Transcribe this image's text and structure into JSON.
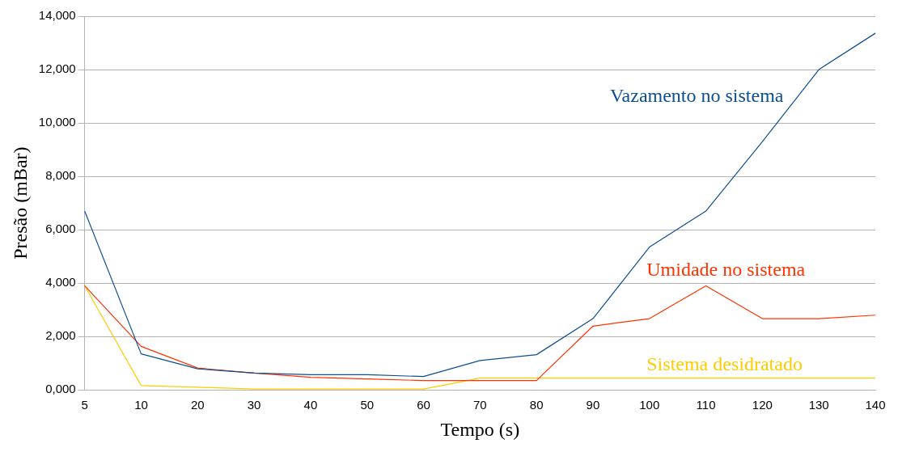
{
  "chart_data": {
    "type": "line",
    "xlabel": "Tempo (s)",
    "ylabel": "Presão (mBar)",
    "categories": [
      "5",
      "10",
      "20",
      "30",
      "40",
      "50",
      "60",
      "70",
      "80",
      "90",
      "100",
      "110",
      "120",
      "130",
      "140"
    ],
    "series": [
      {
        "name": "Vazamento no sistema",
        "color": "#0e4f8f",
        "values": [
          6700,
          1350,
          790,
          630,
          570,
          570,
          500,
          1100,
          1320,
          2670,
          5350,
          6700,
          9300,
          12000,
          13360
        ]
      },
      {
        "name": "Umidade no sistema",
        "color": "#ff3300",
        "values": [
          3900,
          1630,
          820,
          630,
          470,
          410,
          350,
          350,
          350,
          2390,
          2670,
          3900,
          2670,
          2670,
          2800
        ]
      },
      {
        "name": "Sistema desidratado",
        "color": "#ffcc00",
        "values": [
          3900,
          160,
          100,
          30,
          30,
          30,
          30,
          440,
          440,
          440,
          440,
          440,
          440,
          440,
          440
        ]
      }
    ],
    "ylim": [
      0,
      14000
    ],
    "yticks": [
      {
        "value": 0,
        "label": "0,000"
      },
      {
        "value": 2000,
        "label": "2,000"
      },
      {
        "value": 4000,
        "label": "4,000"
      },
      {
        "value": 6000,
        "label": "6,000"
      },
      {
        "value": 8000,
        "label": "8,000"
      },
      {
        "value": 10000,
        "label": "10,000"
      },
      {
        "value": 12000,
        "label": "12,000"
      },
      {
        "value": 14000,
        "label": "14,000"
      }
    ],
    "grid": "y",
    "legend": false,
    "marker": "none",
    "line_style": "solid"
  }
}
